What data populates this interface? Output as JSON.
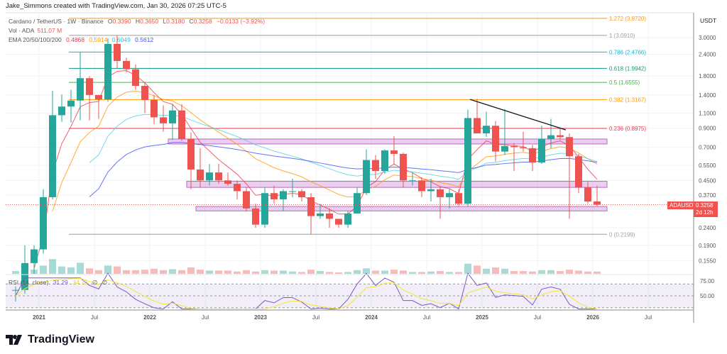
{
  "header": {
    "credit": "Jake_Simmons created with TradingView.com, Jan 30, 2026 07:25 UTC-5"
  },
  "legend": {
    "symbol": "Cardano / TetherUS · 1W · Binance",
    "o_label": "O",
    "o": "0.3390",
    "h_label": "H",
    "h": "0.3650",
    "l_label": "L",
    "l": "0.3180",
    "c_label": "C",
    "c": "0.3258",
    "change": "−0.0133 (−3.92%)",
    "vol_label": "Vol · ADA",
    "vol": "511.07 M",
    "ema_label": "EMA 20/50/100/200",
    "ema20": "0.4868",
    "ema50": "0.5914",
    "ema100": "0.6049",
    "ema200": "0.5612",
    "rsi_label": "RSI (14, close)",
    "rsi": "31.29",
    "rsi_ma": "34.76",
    "rsi_x1": "∅",
    "rsi_x2": "∅"
  },
  "colors": {
    "up": "#26a69a",
    "down": "#ef5350",
    "ema20": "#f23645",
    "ema50": "#ff9800",
    "ema100": "#4dd0e1",
    "ema200": "#3f51f5",
    "rsi": "#7e57c2",
    "rsi_ma": "#f5e52e",
    "zone": "#ce93d8"
  },
  "price_axis": {
    "unit": "USDT",
    "ticks": [
      "3.0000",
      "2.4000",
      "1.8000",
      "1.4000",
      "1.1000",
      "0.9000",
      "0.7000",
      "0.5500",
      "0.4500",
      "0.3700",
      "0.2400",
      "0.1900",
      "0.1550"
    ],
    "last_symbol": "ADAUSDT",
    "last_price": "0.3258",
    "countdown": "2d 12h"
  },
  "rsi_axis": {
    "ticks": [
      "75.00",
      "50.00"
    ]
  },
  "time_axis": {
    "ticks": [
      "2021",
      "Jul",
      "2022",
      "Jul",
      "2023",
      "Jul",
      "2024",
      "Jul",
      "2025",
      "Jul",
      "2026",
      "Jul"
    ]
  },
  "brand": {
    "name": "TradingView"
  },
  "chart_data": {
    "type": "candlestick",
    "title": "Cardano / TetherUS · 1W · Binance",
    "scale": "log",
    "grid": true,
    "ylim": [
      0.13,
      4.2
    ],
    "fib_levels": [
      {
        "label": "1.272 (3.8720)",
        "value": 3.872,
        "color": "#ff9800"
      },
      {
        "label": "1 (3.0910)",
        "value": 3.091,
        "color": "#9e9e9e"
      },
      {
        "label": "0.786 (2.4766)",
        "value": 2.4766,
        "color": "#00bcd4"
      },
      {
        "label": "0.618 (1.9942)",
        "value": 1.9942,
        "color": "#089981"
      },
      {
        "label": "0.5 (1.6555)",
        "value": 1.6555,
        "color": "#4caf50"
      },
      {
        "label": "0.382 (1.3167)",
        "value": 1.3167,
        "color": "#ff9800"
      },
      {
        "label": "0.236 (0.8975)",
        "value": 0.8975,
        "color": "#f23645"
      },
      {
        "label": "0 (0.2199)",
        "value": 0.2199,
        "color": "#9e9e9e"
      }
    ],
    "zones": [
      {
        "from": "2022-03",
        "low": 0.73,
        "high": 0.78
      },
      {
        "from": "2022-05",
        "low": 0.41,
        "high": 0.445
      },
      {
        "from": "2022-06",
        "low": 0.3,
        "high": 0.318
      }
    ],
    "trendline": [
      {
        "date": "2024-12",
        "price": 1.32
      },
      {
        "date": "2025-09",
        "price": 0.88
      }
    ],
    "candles": [
      [
        "2020-10",
        0.105,
        0.11,
        0.09,
        0.105,
        30
      ],
      [
        "2020-11",
        0.105,
        0.19,
        0.1,
        0.15,
        60
      ],
      [
        "2020-12",
        0.15,
        0.19,
        0.13,
        0.18,
        45
      ],
      [
        "2021-01",
        0.18,
        0.4,
        0.17,
        0.36,
        90
      ],
      [
        "2021-02",
        0.36,
        1.48,
        0.35,
        1.07,
        160
      ],
      [
        "2021-03",
        1.07,
        1.41,
        0.98,
        1.2,
        80
      ],
      [
        "2021-04",
        1.2,
        1.5,
        0.97,
        1.3,
        70
      ],
      [
        "2021-05",
        1.3,
        2.47,
        1.0,
        1.75,
        120
      ],
      [
        "2021-06",
        1.75,
        1.8,
        1.0,
        1.4,
        60
      ],
      [
        "2021-07",
        1.4,
        1.4,
        1.02,
        1.32,
        40
      ],
      [
        "2021-08",
        1.32,
        2.97,
        1.28,
        2.76,
        90
      ],
      [
        "2021-09",
        2.76,
        3.1,
        2.0,
        2.2,
        80
      ],
      [
        "2021-10",
        2.2,
        2.3,
        1.9,
        1.97,
        40
      ],
      [
        "2021-11",
        1.97,
        2.1,
        1.5,
        1.58,
        40
      ],
      [
        "2021-12",
        1.58,
        1.65,
        1.1,
        1.31,
        45
      ],
      [
        "2022-01",
        1.31,
        1.4,
        0.95,
        1.04,
        55
      ],
      [
        "2022-02",
        1.04,
        1.22,
        0.86,
        0.96,
        40
      ],
      [
        "2022-03",
        0.96,
        1.24,
        0.77,
        1.14,
        50
      ],
      [
        "2022-04",
        1.14,
        1.24,
        0.76,
        0.78,
        40
      ],
      [
        "2022-05",
        0.78,
        0.85,
        0.4,
        0.52,
        70
      ],
      [
        "2022-06",
        0.52,
        0.69,
        0.41,
        0.45,
        45
      ],
      [
        "2022-07",
        0.45,
        0.56,
        0.42,
        0.5,
        35
      ],
      [
        "2022-08",
        0.5,
        0.56,
        0.43,
        0.45,
        35
      ],
      [
        "2022-09",
        0.45,
        0.5,
        0.42,
        0.43,
        35
      ],
      [
        "2022-10",
        0.43,
        0.45,
        0.35,
        0.39,
        25
      ],
      [
        "2022-11",
        0.39,
        0.41,
        0.3,
        0.31,
        40
      ],
      [
        "2022-12",
        0.31,
        0.33,
        0.24,
        0.25,
        25
      ],
      [
        "2023-01",
        0.25,
        0.41,
        0.24,
        0.38,
        40
      ],
      [
        "2023-02",
        0.38,
        0.42,
        0.33,
        0.35,
        35
      ],
      [
        "2023-03",
        0.35,
        0.4,
        0.3,
        0.39,
        35
      ],
      [
        "2023-04",
        0.39,
        0.46,
        0.36,
        0.39,
        25
      ],
      [
        "2023-05",
        0.39,
        0.4,
        0.34,
        0.36,
        20
      ],
      [
        "2023-06",
        0.36,
        0.38,
        0.22,
        0.28,
        45
      ],
      [
        "2023-07",
        0.28,
        0.33,
        0.27,
        0.29,
        30
      ],
      [
        "2023-08",
        0.29,
        0.31,
        0.24,
        0.27,
        20
      ],
      [
        "2023-09",
        0.27,
        0.27,
        0.24,
        0.25,
        15
      ],
      [
        "2023-10",
        0.25,
        0.3,
        0.24,
        0.29,
        20
      ],
      [
        "2023-11",
        0.29,
        0.41,
        0.29,
        0.38,
        40
      ],
      [
        "2023-12",
        0.38,
        0.68,
        0.37,
        0.59,
        60
      ],
      [
        "2024-01",
        0.59,
        0.63,
        0.46,
        0.51,
        35
      ],
      [
        "2024-02",
        0.51,
        0.68,
        0.49,
        0.67,
        35
      ],
      [
        "2024-03",
        0.67,
        0.81,
        0.56,
        0.64,
        45
      ],
      [
        "2024-04",
        0.64,
        0.65,
        0.41,
        0.45,
        35
      ],
      [
        "2024-05",
        0.45,
        0.5,
        0.42,
        0.45,
        20
      ],
      [
        "2024-06",
        0.45,
        0.47,
        0.36,
        0.39,
        20
      ],
      [
        "2024-07",
        0.39,
        0.46,
        0.34,
        0.4,
        25
      ],
      [
        "2024-08",
        0.4,
        0.41,
        0.27,
        0.36,
        30
      ],
      [
        "2024-09",
        0.36,
        0.4,
        0.31,
        0.38,
        20
      ],
      [
        "2024-10",
        0.38,
        0.4,
        0.32,
        0.33,
        20
      ],
      [
        "2024-11",
        0.33,
        1.15,
        0.32,
        1.03,
        110
      ],
      [
        "2024-12",
        1.03,
        1.33,
        0.85,
        0.84,
        90
      ],
      [
        "2025-01",
        0.84,
        1.12,
        0.8,
        0.93,
        55
      ],
      [
        "2025-02",
        0.93,
        0.99,
        0.58,
        0.66,
        70
      ],
      [
        "2025-03",
        0.66,
        1.16,
        0.63,
        0.71,
        55
      ],
      [
        "2025-04",
        0.71,
        0.74,
        0.51,
        0.7,
        30
      ],
      [
        "2025-05",
        0.7,
        0.86,
        0.66,
        0.69,
        30
      ],
      [
        "2025-06",
        0.69,
        0.72,
        0.51,
        0.57,
        25
      ],
      [
        "2025-07",
        0.57,
        0.93,
        0.56,
        0.78,
        40
      ],
      [
        "2025-08",
        0.78,
        1.02,
        0.69,
        0.82,
        40
      ],
      [
        "2025-09",
        0.82,
        0.91,
        0.77,
        0.8,
        30
      ],
      [
        "2025-10",
        0.8,
        0.84,
        0.27,
        0.62,
        45
      ],
      [
        "2025-11",
        0.62,
        0.64,
        0.38,
        0.41,
        35
      ],
      [
        "2025-12",
        0.41,
        0.44,
        0.33,
        0.34,
        25
      ],
      [
        "2026-01",
        0.34,
        0.42,
        0.32,
        0.3258,
        25
      ]
    ]
  }
}
